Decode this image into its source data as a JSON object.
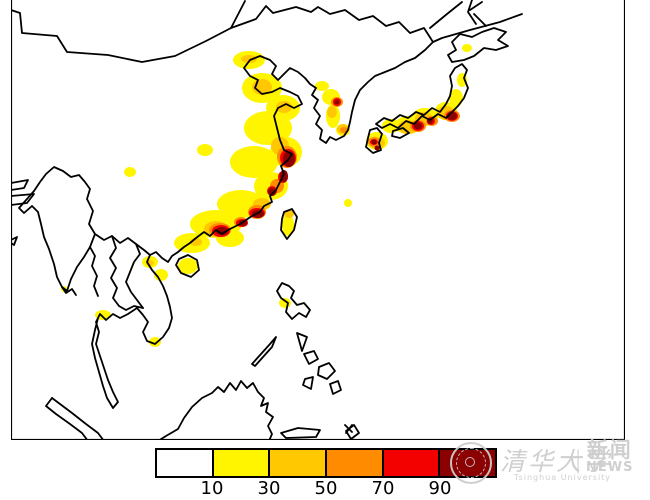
{
  "legend": {
    "tick_labels": [
      "10",
      "30",
      "50",
      "70",
      "90"
    ],
    "tick_values": [
      10,
      30,
      50,
      70,
      90
    ],
    "segment_colors": [
      "#ffffff",
      "#fff500",
      "#ffc800",
      "#ff8c00",
      "#f30000",
      "#8b0000"
    ],
    "outline_color": "#000000"
  },
  "watermark": {
    "university_cn": "清华大学",
    "university_en": "Tsinghua University",
    "separator": "|",
    "news_cn": "新闻",
    "news_en": "NEWS"
  }
}
